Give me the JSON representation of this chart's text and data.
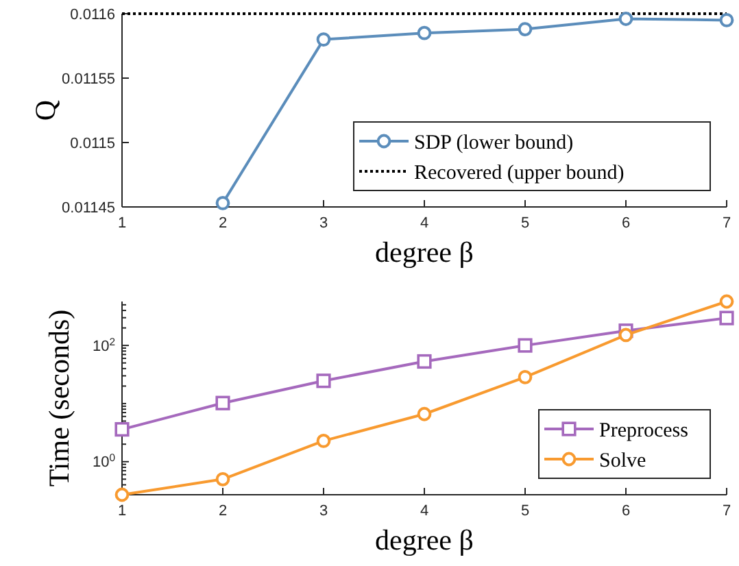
{
  "chart_data": [
    {
      "type": "line",
      "xlabel": "degree β",
      "ylabel": "Q",
      "xlim": [
        1,
        7
      ],
      "xticks": [
        1,
        2,
        3,
        4,
        5,
        6,
        7
      ],
      "ylim": [
        0.01145,
        0.0116
      ],
      "yticks": [
        0.01145,
        0.0115,
        0.01155,
        0.0116
      ],
      "legend": "bottom right",
      "marker": "circle",
      "line_style": "solid",
      "series": [
        {
          "name": "SDP (lower bound)",
          "color": "#5b8dbb",
          "x": [
            2,
            3,
            4,
            5,
            6,
            7
          ],
          "values": [
            0.011453,
            0.01158,
            0.011585,
            0.011588,
            0.011596,
            0.011595
          ]
        }
      ],
      "ref_lines": [
        {
          "axis": "y",
          "value": 0.0116,
          "label": "Recovered (upper bound)",
          "color": "#000000",
          "line_style": "dotted"
        }
      ]
    },
    {
      "type": "line",
      "xlabel": "degree β",
      "ylabel": "Time (seconds)",
      "log": "y",
      "xlim": [
        1,
        7
      ],
      "xticks": [
        1,
        2,
        3,
        4,
        5,
        6,
        7
      ],
      "ylim": [
        0.27,
        570
      ],
      "yticks": [
        {
          "value": 0.3,
          "label": null
        },
        {
          "value": 0.4,
          "label": null
        },
        {
          "value": 0.5,
          "label": null
        },
        {
          "value": 0.6,
          "label": null
        },
        {
          "value": 0.7,
          "label": null
        },
        {
          "value": 0.8,
          "label": null
        },
        {
          "value": 0.9,
          "label": null
        },
        {
          "value": 1,
          "label": "10$^{0}$"
        },
        {
          "value": 2,
          "label": null
        },
        {
          "value": 3,
          "label": null
        },
        {
          "value": 4,
          "label": null
        },
        {
          "value": 5,
          "label": null
        },
        {
          "value": 6,
          "label": null
        },
        {
          "value": 7,
          "label": null
        },
        {
          "value": 8,
          "label": null
        },
        {
          "value": 9,
          "label": null
        },
        {
          "value": 10,
          "label": null
        },
        {
          "value": 20,
          "label": null
        },
        {
          "value": 30,
          "label": null
        },
        {
          "value": 40,
          "label": null
        },
        {
          "value": 50,
          "label": null
        },
        {
          "value": 60,
          "label": null
        },
        {
          "value": 70,
          "label": null
        },
        {
          "value": 80,
          "label": null
        },
        {
          "value": 90,
          "label": null
        },
        {
          "value": 100,
          "label": "10$^{2}$"
        },
        {
          "value": 200,
          "label": null
        },
        {
          "value": 300,
          "label": null
        },
        {
          "value": 400,
          "label": null
        },
        {
          "value": 500,
          "label": null
        }
      ],
      "legend": "bottom right",
      "line_style": "solid",
      "x": [
        1,
        2,
        3,
        4,
        5,
        6,
        7
      ],
      "series": [
        {
          "name": "Preprocess",
          "color": "#a569bd",
          "marker": "square",
          "values": [
            3.6,
            10.2,
            24.6,
            53,
            100,
            179,
            296
          ]
        },
        {
          "name": "Solve",
          "color": "#f89a2f",
          "marker": "circle",
          "values": [
            0.27,
            0.5,
            2.28,
            6.6,
            28.5,
            151,
            570
          ]
        }
      ]
    }
  ]
}
